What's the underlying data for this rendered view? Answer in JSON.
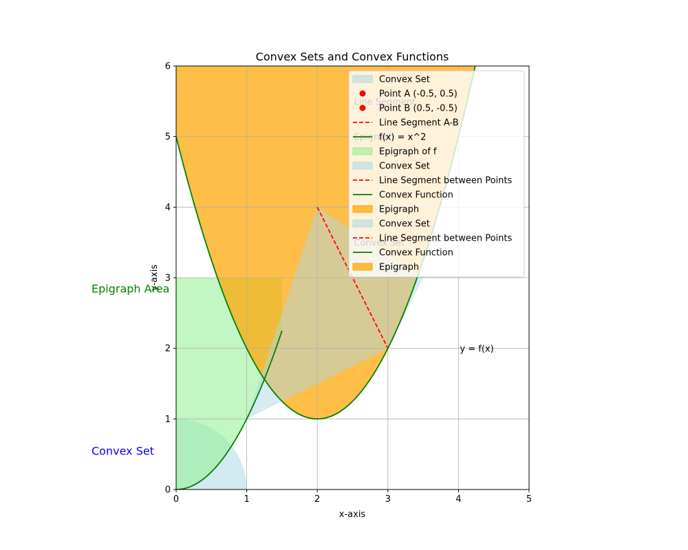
{
  "chart_data": {
    "type": "line",
    "title": "Convex Sets and Convex Functions",
    "xlabel": "x-axis",
    "ylabel": "y-axis",
    "xlim": [
      0,
      5
    ],
    "ylim": [
      0,
      6
    ],
    "xticks": [
      "0",
      "1",
      "2",
      "3",
      "4",
      "5"
    ],
    "yticks": [
      "0",
      "1",
      "2",
      "3",
      "4",
      "5",
      "6"
    ],
    "grid": true,
    "legend_position": "top-right",
    "colors": {
      "convex_set": "#add8e6",
      "epigraph_green": "#90ee90",
      "epigraph_orange": "#ffa500",
      "segment": "#ff0000",
      "function": "#008000",
      "annot_blue": "#0000ff",
      "annot_green": "#008000"
    },
    "circle_set": {
      "center": [
        0,
        0
      ],
      "radius": 1
    },
    "polygon_set": {
      "vertices": [
        [
          1,
          1
        ],
        [
          2,
          4
        ],
        [
          3.5,
          3
        ],
        [
          3,
          2
        ]
      ]
    },
    "green_epigraph": {
      "x_start": 0,
      "x_end": 1.5,
      "y_top": 3,
      "curve": "x^2"
    },
    "orange_epigraph": {
      "x_start": 0,
      "x_end": 5,
      "y_top": 6,
      "curve": "(x-2)^2+1"
    },
    "series": [
      {
        "name": "f(x) = x^2",
        "type": "line",
        "x_range": [
          0,
          1.5
        ],
        "formula": "x^2"
      },
      {
        "name": "Convex Function",
        "type": "line",
        "x_range": [
          0,
          5
        ],
        "formula": "(x-2)^2+1"
      },
      {
        "name": "Line Segment between Points",
        "type": "line",
        "points": [
          [
            2,
            4
          ],
          [
            3,
            2
          ]
        ]
      }
    ],
    "legend": [
      {
        "label": "Convex Set",
        "kind": "patch",
        "color": "#add8e6"
      },
      {
        "label": "Point A (-0.5, 0.5)",
        "kind": "point",
        "color": "#ff0000"
      },
      {
        "label": "Point B (0.5, -0.5)",
        "kind": "point",
        "color": "#ff0000"
      },
      {
        "label": "Line Segment A-B",
        "kind": "dashed",
        "color": "#ff0000"
      },
      {
        "label": "f(x) = x^2",
        "kind": "line",
        "color": "#008000"
      },
      {
        "label": "Epigraph of f",
        "kind": "patch",
        "color": "#90ee90"
      },
      {
        "label": "Convex Set",
        "kind": "patch",
        "color": "#add8e6"
      },
      {
        "label": "Line Segment between Points",
        "kind": "dashed",
        "color": "#ff0000"
      },
      {
        "label": "Convex Function",
        "kind": "line",
        "color": "#008000"
      },
      {
        "label": "Epigraph",
        "kind": "patch",
        "color": "#ffa500"
      },
      {
        "label": "Convex Set",
        "kind": "patch",
        "color": "#add8e6"
      },
      {
        "label": "Line Segment between Points",
        "kind": "dashed",
        "color": "#ff0000"
      },
      {
        "label": "Convex Function",
        "kind": "line",
        "color": "#008000"
      },
      {
        "label": "Epigraph",
        "kind": "patch",
        "color": "#ffa500"
      }
    ],
    "annotations": {
      "in_plot": [
        {
          "text": "Line Segment",
          "x": 2.5,
          "y": 5.5
        },
        {
          "text": "Epigraph",
          "x": 2.5,
          "y": 5.0
        },
        {
          "text": "Convex Set",
          "x": 2.5,
          "y": 3.5
        },
        {
          "text": "y = f(x)",
          "x": 4.0,
          "y": 2.0
        }
      ],
      "side": [
        {
          "text": "Epigraph Area",
          "color": "#008000",
          "y": 2.85
        },
        {
          "text": "Convex Set",
          "color": "#0000ff",
          "y": 0.55
        }
      ]
    }
  }
}
